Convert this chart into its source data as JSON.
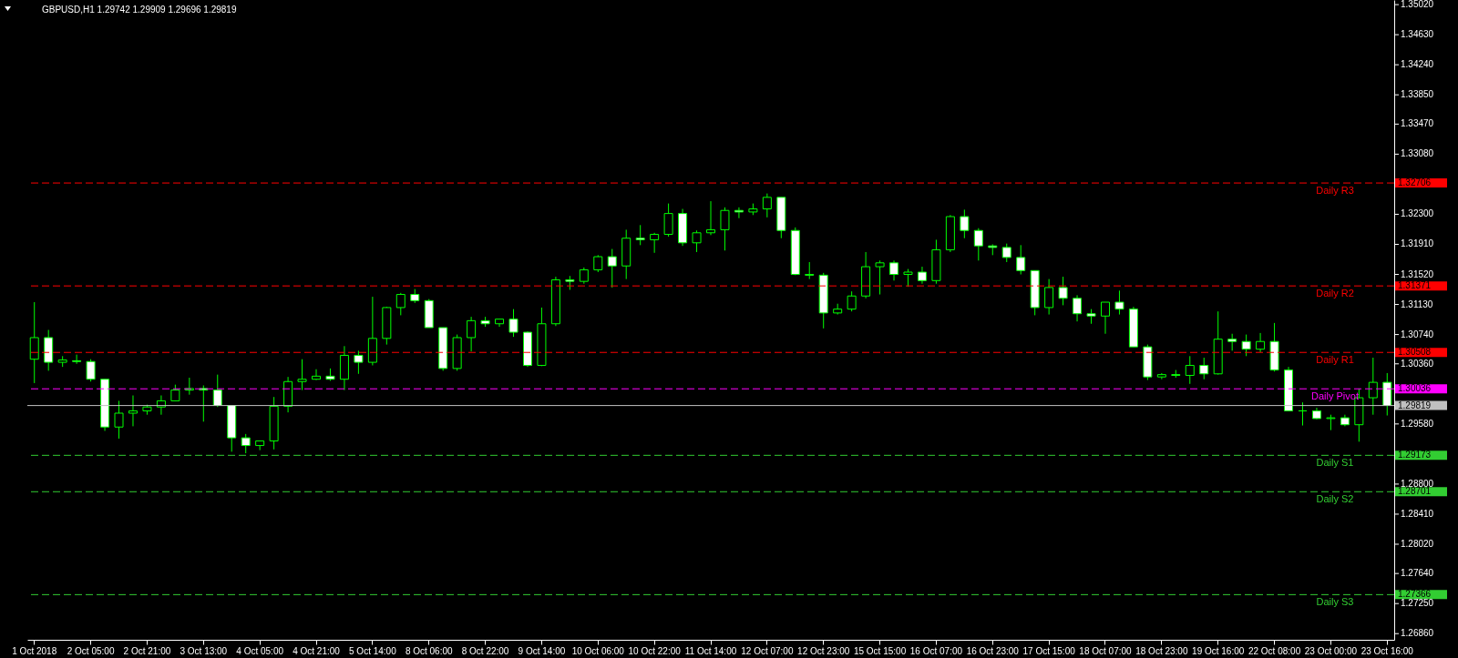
{
  "chart_data": {
    "type": "candlestick",
    "title": "GBPUSD,H1  1.29742 1.29909 1.29696 1.29819",
    "categories": [
      "1 Oct 2018",
      null,
      null,
      null,
      "2 Oct 05:00",
      null,
      null,
      null,
      "2 Oct 21:00",
      null,
      null,
      null,
      "3 Oct 13:00",
      null,
      null,
      null,
      "4 Oct 05:00",
      null,
      null,
      null,
      "4 Oct 21:00",
      null,
      null,
      null,
      "5 Oct 14:00",
      null,
      null,
      null,
      "8 Oct 06:00",
      null,
      null,
      null,
      "8 Oct 22:00",
      null,
      null,
      null,
      "9 Oct 14:00",
      null,
      null,
      null,
      "10 Oct 06:00",
      null,
      null,
      null,
      "10 Oct 22:00",
      null,
      null,
      null,
      "11 Oct 14:00",
      null,
      null,
      null,
      "12 Oct 07:00",
      null,
      null,
      null,
      "12 Oct 23:00",
      null,
      null,
      null,
      "15 Oct 15:00",
      null,
      null,
      null,
      "16 Oct 07:00",
      null,
      null,
      null,
      "16 Oct 23:00",
      null,
      null,
      null,
      "17 Oct 15:00",
      null,
      null,
      null,
      "18 Oct 07:00",
      null,
      null,
      null,
      "18 Oct 23:00",
      null,
      null,
      null,
      "19 Oct 16:00",
      null,
      null,
      null,
      "22 Oct 08:00",
      null,
      null,
      null,
      "23 Oct 00:00",
      null,
      null,
      null,
      "23 Oct 16:00"
    ],
    "ohlc": [
      [
        1.3042,
        1.3116,
        1.3011,
        1.307
      ],
      [
        1.307,
        1.308,
        1.3027,
        1.3038
      ],
      [
        1.3038,
        1.3046,
        1.3032,
        1.3041
      ],
      [
        1.304,
        1.3048,
        1.3036,
        1.3039
      ],
      [
        1.3039,
        1.3042,
        1.3013,
        1.3016
      ],
      [
        1.3016,
        1.3016,
        1.2949,
        1.2954
      ],
      [
        1.2954,
        1.2988,
        1.2939,
        1.2972
      ],
      [
        1.2972,
        1.2995,
        1.2955,
        1.2975
      ],
      [
        1.2975,
        1.2983,
        1.297,
        1.298
      ],
      [
        1.298,
        1.2995,
        1.297,
        1.2988
      ],
      [
        1.2988,
        1.3009,
        1.2988,
        1.3002
      ],
      [
        1.3002,
        1.3018,
        1.2996,
        1.3004
      ],
      [
        1.3004,
        1.3008,
        1.2961,
        1.3002
      ],
      [
        1.3002,
        1.3022,
        1.298,
        1.2982
      ],
      [
        1.2982,
        1.2982,
        1.2922,
        1.294
      ],
      [
        1.294,
        1.2945,
        1.292,
        1.293
      ],
      [
        1.293,
        1.2936,
        1.2924,
        1.2936
      ],
      [
        1.2936,
        1.2993,
        1.2925,
        1.2981
      ],
      [
        1.2981,
        1.3019,
        1.2973,
        1.3013
      ],
      [
        1.3013,
        1.3042,
        1.3002,
        1.3016
      ],
      [
        1.3016,
        1.3029,
        1.3015,
        1.302
      ],
      [
        1.302,
        1.303,
        1.3014,
        1.3016
      ],
      [
        1.3016,
        1.3059,
        1.3002,
        1.3047
      ],
      [
        1.3047,
        1.3053,
        1.3023,
        1.3038
      ],
      [
        1.3038,
        1.3123,
        1.3034,
        1.3069
      ],
      [
        1.3069,
        1.311,
        1.3061,
        1.3109
      ],
      [
        1.3109,
        1.3128,
        1.3099,
        1.3126
      ],
      [
        1.3126,
        1.3133,
        1.3115,
        1.3118
      ],
      [
        1.3118,
        1.312,
        1.3083,
        1.3083
      ],
      [
        1.3083,
        1.3083,
        1.3027,
        1.303
      ],
      [
        1.303,
        1.3074,
        1.3027,
        1.307
      ],
      [
        1.307,
        1.3097,
        1.3052,
        1.3092
      ],
      [
        1.3092,
        1.3097,
        1.3084,
        1.3088
      ],
      [
        1.3088,
        1.3094,
        1.3084,
        1.3094
      ],
      [
        1.3094,
        1.3107,
        1.3071,
        1.3077
      ],
      [
        1.3077,
        1.3078,
        1.3032,
        1.3034
      ],
      [
        1.3034,
        1.3109,
        1.3033,
        1.3088
      ],
      [
        1.3088,
        1.3149,
        1.3085,
        1.3145
      ],
      [
        1.3145,
        1.315,
        1.3132,
        1.3143
      ],
      [
        1.3143,
        1.3161,
        1.314,
        1.3158
      ],
      [
        1.3158,
        1.3177,
        1.3155,
        1.3175
      ],
      [
        1.3175,
        1.3185,
        1.3135,
        1.3163
      ],
      [
        1.3163,
        1.321,
        1.3146,
        1.3199
      ],
      [
        1.3199,
        1.3216,
        1.319,
        1.3197
      ],
      [
        1.3197,
        1.3206,
        1.318,
        1.3204
      ],
      [
        1.3204,
        1.3244,
        1.3201,
        1.3231
      ],
      [
        1.3231,
        1.3237,
        1.3189,
        1.3193
      ],
      [
        1.3193,
        1.3209,
        1.3181,
        1.3206
      ],
      [
        1.3206,
        1.3247,
        1.3203,
        1.321
      ],
      [
        1.321,
        1.3239,
        1.3183,
        1.3235
      ],
      [
        1.3235,
        1.3239,
        1.3225,
        1.3233
      ],
      [
        1.3233,
        1.3244,
        1.3229,
        1.3237
      ],
      [
        1.3237,
        1.3257,
        1.3226,
        1.3252
      ],
      [
        1.3252,
        1.3252,
        1.3199,
        1.3209
      ],
      [
        1.3209,
        1.3213,
        1.3151,
        1.3152
      ],
      [
        1.3152,
        1.3168,
        1.3146,
        1.3151
      ],
      [
        1.3151,
        1.3154,
        1.3082,
        1.3102
      ],
      [
        1.3102,
        1.3114,
        1.31,
        1.3107
      ],
      [
        1.3107,
        1.313,
        1.3104,
        1.3124
      ],
      [
        1.3124,
        1.3181,
        1.3121,
        1.3162
      ],
      [
        1.3162,
        1.317,
        1.3126,
        1.3167
      ],
      [
        1.3167,
        1.317,
        1.3144,
        1.3152
      ],
      [
        1.3152,
        1.3159,
        1.3136,
        1.3155
      ],
      [
        1.3155,
        1.3162,
        1.314,
        1.3144
      ],
      [
        1.3144,
        1.3197,
        1.314,
        1.3184
      ],
      [
        1.3184,
        1.3229,
        1.3181,
        1.3227
      ],
      [
        1.3227,
        1.3236,
        1.3199,
        1.3209
      ],
      [
        1.3209,
        1.3212,
        1.317,
        1.3189
      ],
      [
        1.3189,
        1.3191,
        1.3177,
        1.3187
      ],
      [
        1.3187,
        1.3192,
        1.3168,
        1.3174
      ],
      [
        1.3174,
        1.319,
        1.3152,
        1.3157
      ],
      [
        1.3157,
        1.3157,
        1.3099,
        1.3109
      ],
      [
        1.3109,
        1.3146,
        1.31,
        1.3135
      ],
      [
        1.3135,
        1.3149,
        1.3112,
        1.3121
      ],
      [
        1.3121,
        1.3125,
        1.3091,
        1.3101
      ],
      [
        1.3101,
        1.3107,
        1.3088,
        1.3098
      ],
      [
        1.3098,
        1.3116,
        1.3075,
        1.3116
      ],
      [
        1.3116,
        1.3131,
        1.31,
        1.3107
      ],
      [
        1.3107,
        1.311,
        1.3058,
        1.3058
      ],
      [
        1.3058,
        1.3061,
        1.3015,
        1.3019
      ],
      [
        1.3019,
        1.3024,
        1.3016,
        1.3022
      ],
      [
        1.3022,
        1.3028,
        1.3018,
        1.3021
      ],
      [
        1.3021,
        1.3046,
        1.301,
        1.3034
      ],
      [
        1.3034,
        1.3044,
        1.3016,
        1.3023
      ],
      [
        1.3023,
        1.3104,
        1.3022,
        1.3068
      ],
      [
        1.3068,
        1.3075,
        1.3053,
        1.3065
      ],
      [
        1.3065,
        1.3074,
        1.3046,
        1.3055
      ],
      [
        1.3055,
        1.3076,
        1.3051,
        1.3065
      ],
      [
        1.3065,
        1.3089,
        1.3026,
        1.3028
      ],
      [
        1.3028,
        1.3032,
        1.2975,
        1.2975
      ],
      [
        1.2975,
        1.2986,
        1.2956,
        1.2975
      ],
      [
        1.2975,
        1.2979,
        1.2964,
        1.2965
      ],
      [
        1.2965,
        1.297,
        1.295,
        1.2966
      ],
      [
        1.2966,
        1.297,
        1.2955,
        1.2957
      ],
      [
        1.2957,
        1.3004,
        1.2935,
        1.2992
      ],
      [
        1.2992,
        1.3044,
        1.297,
        1.3012
      ],
      [
        1.3012,
        1.3024,
        1.2969,
        1.2982
      ]
    ],
    "color": "#00ff00",
    "ylim": [
      1.2678,
      1.3508
    ],
    "yticks": [
      {
        "value": 1.3502,
        "label": "1.35020"
      },
      {
        "value": 1.3463,
        "label": "1.34630"
      },
      {
        "value": 1.3424,
        "label": "1.34240"
      },
      {
        "value": 1.3385,
        "label": "1.33850"
      },
      {
        "value": 1.3347,
        "label": "1.33470"
      },
      {
        "value": 1.3308,
        "label": "1.33080"
      },
      {
        "value": 1.323,
        "label": "1.32300"
      },
      {
        "value": 1.3191,
        "label": "1.31910"
      },
      {
        "value": 1.3152,
        "label": "1.31520"
      },
      {
        "value": 1.3113,
        "label": "1.31130"
      },
      {
        "value": 1.3074,
        "label": "1.30740"
      },
      {
        "value": 1.3036,
        "label": "1.30360"
      },
      {
        "value": 1.2958,
        "label": "1.29580"
      },
      {
        "value": 1.288,
        "label": "1.28800"
      },
      {
        "value": 1.2841,
        "label": "1.28410"
      },
      {
        "value": 1.2802,
        "label": "1.28020"
      },
      {
        "value": 1.2764,
        "label": "1.27640"
      },
      {
        "value": 1.2725,
        "label": "1.27250"
      },
      {
        "value": 1.2686,
        "label": "1.26860"
      }
    ],
    "ref_lines": [
      {
        "axis": "y",
        "value": 1.32706,
        "label": "Daily R3",
        "color": "#ff0000",
        "line_style": "dashed"
      },
      {
        "axis": "y",
        "value": 1.31371,
        "label": "Daily R2",
        "color": "#ff0000",
        "line_style": "dashed"
      },
      {
        "axis": "y",
        "value": 1.30508,
        "label": "Daily R1",
        "color": "#ff0000",
        "line_style": "dashed"
      },
      {
        "axis": "y",
        "value": 1.30036,
        "label": "Daily Pivot",
        "color": "#ff00ff",
        "line_style": "dashed"
      },
      {
        "axis": "y",
        "value": 1.29819,
        "label": null,
        "color": "#c0c0c0",
        "line_style": "solid"
      },
      {
        "axis": "y",
        "value": 1.29173,
        "label": "Daily S1",
        "color": "#32cd32",
        "line_style": "dashed"
      },
      {
        "axis": "y",
        "value": 1.28701,
        "label": "Daily S2",
        "color": "#32cd32",
        "line_style": "dashed"
      },
      {
        "axis": "y",
        "value": 1.27366,
        "label": "Daily S3",
        "color": "#32cd32",
        "line_style": "dashed"
      }
    ],
    "annotations": [
      "1.32706",
      "1.31371",
      "1.30508",
      "1.30036",
      "1.29819",
      "1.29173",
      "1.28701",
      "1.27366"
    ],
    "grid": false
  }
}
